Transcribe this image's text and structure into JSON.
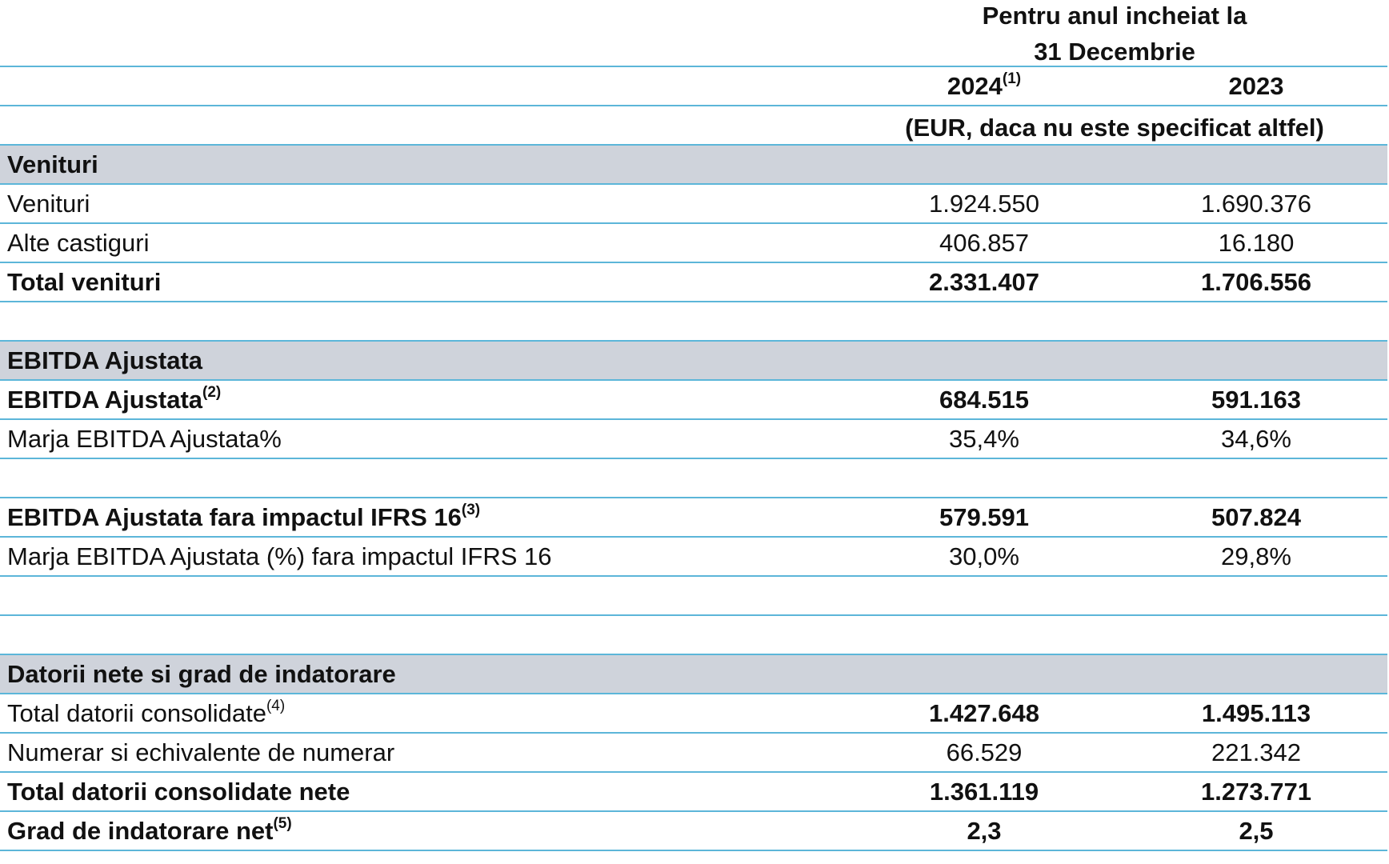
{
  "header": {
    "period_lines": [
      "Pentru anul incheiat la",
      "31 Decembrie"
    ],
    "years": [
      {
        "label": "2024",
        "note": "(1)"
      },
      {
        "label": "2023"
      }
    ],
    "unit": "(EUR, daca nu este specificat altfel)"
  },
  "rows": [
    {
      "type": "section",
      "label": "Venituri"
    },
    {
      "type": "data",
      "label": "Venituri",
      "values": [
        "1.924.550",
        "1.690.376"
      ]
    },
    {
      "type": "data",
      "label": "Alte castiguri",
      "values": [
        "406.857",
        "16.180"
      ]
    },
    {
      "type": "data",
      "label": "Total venituri",
      "values": [
        "2.331.407",
        "1.706.556"
      ],
      "bold_label": true,
      "bold_values": true
    },
    {
      "type": "empty"
    },
    {
      "type": "section",
      "label": "EBITDA Ajustata"
    },
    {
      "type": "data",
      "label": "EBITDA Ajustata",
      "note": "(2)",
      "values": [
        "684.515",
        "591.163"
      ],
      "bold_label": true,
      "bold_values": true
    },
    {
      "type": "data",
      "label": "Marja EBITDA Ajustata%",
      "values": [
        "35,4%",
        "34,6%"
      ]
    },
    {
      "type": "empty"
    },
    {
      "type": "data",
      "label": "EBITDA Ajustata fara impactul IFRS 16",
      "note": "(3)",
      "values": [
        "579.591",
        "507.824"
      ],
      "bold_label": true,
      "bold_values": true
    },
    {
      "type": "data",
      "label": "Marja EBITDA Ajustata (%) fara impactul IFRS 16",
      "values": [
        "30,0%",
        "29,8%"
      ]
    },
    {
      "type": "empty"
    },
    {
      "type": "empty"
    },
    {
      "type": "section",
      "label": "Datorii nete si grad de indatorare"
    },
    {
      "type": "data",
      "label": "Total datorii consolidate",
      "note": "(4)",
      "values": [
        "1.427.648",
        "1.495.113"
      ],
      "bold_values": true
    },
    {
      "type": "data",
      "label": "Numerar si echivalente de numerar",
      "values": [
        "66.529",
        "221.342"
      ]
    },
    {
      "type": "data",
      "label": "Total datorii consolidate nete",
      "values": [
        "1.361.119",
        "1.273.771"
      ],
      "bold_label": true,
      "bold_values": true
    },
    {
      "type": "data",
      "label": "Grad de indatorare net",
      "note": "(5)",
      "values": [
        "2,3",
        "2,5"
      ],
      "bold_label": true,
      "bold_values": true
    }
  ]
}
